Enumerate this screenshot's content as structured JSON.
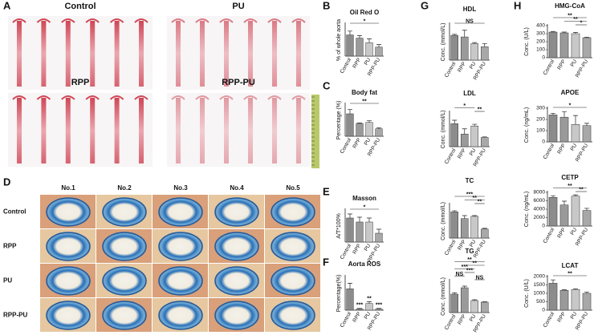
{
  "figure": {
    "panel_labels": [
      "A",
      "B",
      "C",
      "D",
      "E",
      "F",
      "G",
      "H"
    ],
    "photo_labels": [
      "Control",
      "PU",
      "RPP",
      "RPP-PU"
    ],
    "section_columns": [
      "No.1",
      "No.2",
      "No.3",
      "No.4",
      "No.5"
    ],
    "section_rows": [
      "Control",
      "RPP",
      "PU",
      "RPP-PU"
    ]
  },
  "chart_data": [
    {
      "type": "bar",
      "title": "Oil Red O",
      "ylabel": "% of whole aorta",
      "categories": [
        "Control",
        "RPP",
        "PU",
        "RPP-PU"
      ],
      "values": [
        16.5,
        14,
        10.5,
        7
      ],
      "errors": [
        3,
        2,
        3,
        2
      ],
      "colors": [
        "#8c8c8c",
        "#9a9a9a",
        "#c8c8c8",
        "#a8a8a8"
      ],
      "ylim": [
        0,
        25
      ],
      "annotations": [
        "*"
      ]
    },
    {
      "type": "bar",
      "title": "Body fat",
      "ylabel": "Percentage (%)",
      "categories": [
        "Control",
        "RPP",
        "PU",
        "RPP-PU"
      ],
      "values": [
        2.1,
        1.2,
        1.3,
        0.7
      ],
      "errors": [
        0.4,
        0.05,
        0.15,
        0.1
      ],
      "colors": [
        "#8c8c8c",
        "#9a9a9a",
        "#c8c8c8",
        "#a8a8a8"
      ],
      "ylim": [
        0,
        3
      ],
      "annotations": [
        "**"
      ]
    },
    {
      "type": "bar",
      "title": "Masson",
      "ylabel": "A/T*100%",
      "categories": [
        "Control",
        "RPP",
        "PU",
        "RPP-PU"
      ],
      "values": [
        6,
        5,
        5,
        2.2
      ],
      "errors": [
        1,
        1.2,
        1,
        1
      ],
      "colors": [
        "#8c8c8c",
        "#9a9a9a",
        "#c8c8c8",
        "#a8a8a8"
      ],
      "ylim": [
        0,
        8
      ],
      "annotations": [
        "*"
      ]
    },
    {
      "type": "bar",
      "title": "Aorta ROS",
      "ylabel": "Percentage(%)",
      "categories": [
        "Control",
        "RPP",
        "PU",
        "RPP-PU"
      ],
      "values": [
        3.8,
        0.2,
        1.2,
        0.2
      ],
      "errors": [
        1,
        0.1,
        0.3,
        0.1
      ],
      "colors": [
        "#8c8c8c",
        "#9a9a9a",
        "#c8c8c8",
        "#a8a8a8"
      ],
      "ylim": [
        0,
        6
      ],
      "annotations": [
        "***",
        "**",
        "***"
      ]
    },
    {
      "type": "bar",
      "title": "HDL",
      "ylabel": "Conc. (mmol/L)",
      "categories": [
        "Control",
        "RPP",
        "PU",
        "RPP-PU"
      ],
      "values": [
        4.8,
        4.5,
        3.2,
        2.6
      ],
      "errors": [
        0.2,
        1.3,
        0.2,
        0.6
      ],
      "colors": [
        "#8c8c8c",
        "#9a9a9a",
        "#c8c8c8",
        "#a8a8a8"
      ],
      "ylim": [
        0,
        7
      ],
      "annotations": [
        "NS"
      ]
    },
    {
      "type": "bar",
      "title": "LDL",
      "ylabel": "Conc. (mmol/L)",
      "categories": [
        "Control",
        "RPP",
        "PU",
        "RPP-PU"
      ],
      "values": [
        4,
        2.2,
        3.6,
        1.6
      ],
      "errors": [
        0.6,
        0.9,
        0.3,
        0.1
      ],
      "colors": [
        "#8c8c8c",
        "#9a9a9a",
        "#c8c8c8",
        "#a8a8a8"
      ],
      "ylim": [
        0,
        6
      ],
      "annotations": [
        "**",
        "*"
      ]
    },
    {
      "type": "bar",
      "title": "TC",
      "ylabel": "Conc. (mmol/L)",
      "categories": [
        "Control",
        "RPP",
        "PU",
        "RPP-PU"
      ],
      "values": [
        35,
        26,
        29,
        12
      ],
      "errors": [
        1.5,
        4,
        1,
        1
      ],
      "colors": [
        "#8c8c8c",
        "#9a9a9a",
        "#c8c8c8",
        "#a8a8a8"
      ],
      "ylim": [
        0,
        45
      ],
      "annotations": [
        "**",
        "**",
        "***"
      ]
    },
    {
      "type": "bar",
      "title": "TG",
      "ylabel": "Conc. (mmol/L)",
      "categories": [
        "Control",
        "RPP",
        "PU",
        "RPP-PU"
      ],
      "values": [
        2.3,
        3.1,
        1.5,
        1.3
      ],
      "errors": [
        0.15,
        0.2,
        0.1,
        0.05
      ],
      "colors": [
        "#8c8c8c",
        "#9a9a9a",
        "#c8c8c8",
        "#a8a8a8"
      ],
      "ylim": [
        0,
        4
      ],
      "annotations": [
        "NS",
        "NS",
        "***",
        "***",
        "**",
        "**"
      ]
    },
    {
      "type": "bar",
      "title": "HMG-CoA",
      "ylabel": "Conc. (U/L)",
      "categories": [
        "Control",
        "RPP",
        "PU",
        "RPP-PU"
      ],
      "values": [
        320,
        310,
        300,
        250
      ],
      "errors": [
        8,
        10,
        15,
        5
      ],
      "colors": [
        "#8c8c8c",
        "#9a9a9a",
        "#c8c8c8",
        "#a8a8a8"
      ],
      "ylim": [
        0,
        400
      ],
      "yticks": [
        0,
        100,
        200,
        300,
        400
      ],
      "annotations": [
        "*",
        "**",
        "**"
      ]
    },
    {
      "type": "bar",
      "title": "APOE",
      "ylabel": "Conc. (ng/mL)",
      "categories": [
        "Control",
        "RPP",
        "PU",
        "RPP-PU"
      ],
      "values": [
        240,
        220,
        155,
        145
      ],
      "errors": [
        15,
        50,
        80,
        20
      ],
      "colors": [
        "#8c8c8c",
        "#9a9a9a",
        "#c8c8c8",
        "#a8a8a8"
      ],
      "ylim": [
        0,
        300
      ],
      "yticks": [
        0,
        100,
        200,
        300
      ],
      "annotations": [
        "*"
      ]
    },
    {
      "type": "bar",
      "title": "CETP",
      "ylabel": "Conc. (ng/mL)",
      "categories": [
        "Control",
        "RPP",
        "PU",
        "RPP-PU"
      ],
      "values": [
        6800,
        5000,
        7100,
        3700
      ],
      "errors": [
        400,
        900,
        300,
        500
      ],
      "colors": [
        "#8c8c8c",
        "#9a9a9a",
        "#c8c8c8",
        "#a8a8a8"
      ],
      "ylim": [
        0,
        8000
      ],
      "yticks": [
        0,
        2000,
        4000,
        6000,
        8000
      ],
      "annotations": [
        "**",
        "**"
      ]
    },
    {
      "type": "bar",
      "title": "LCAT",
      "ylabel": "Conc. (U/L)",
      "categories": [
        "Control",
        "RPP",
        "PU",
        "RPP-PU"
      ],
      "values": [
        1600,
        1180,
        1230,
        1000
      ],
      "errors": [
        200,
        30,
        40,
        80
      ],
      "colors": [
        "#8c8c8c",
        "#9a9a9a",
        "#c8c8c8",
        "#a8a8a8"
      ],
      "ylim": [
        0,
        2000
      ],
      "yticks": [
        0,
        500,
        1000,
        1500,
        2000
      ],
      "annotations": [
        "**"
      ]
    }
  ]
}
